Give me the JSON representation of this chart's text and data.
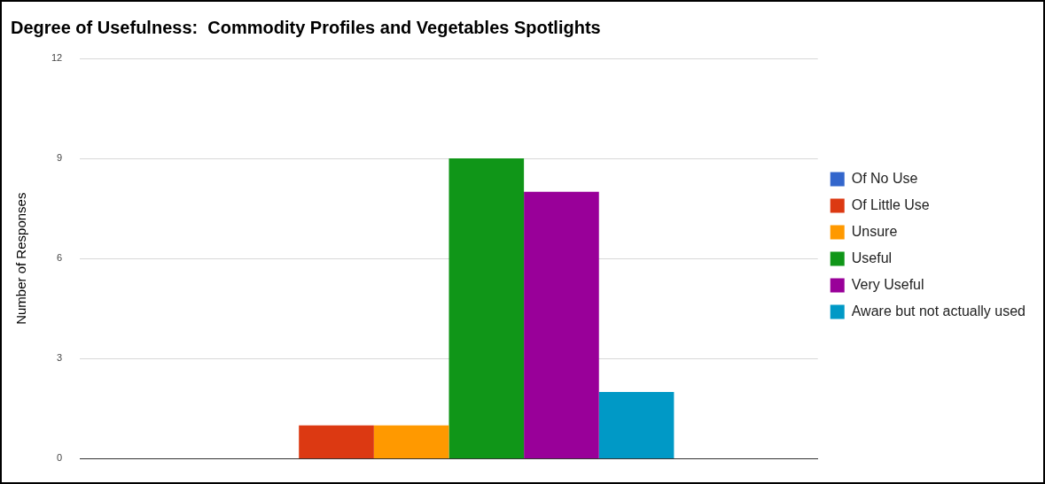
{
  "chart_data": {
    "type": "bar",
    "title": "Degree of Usefulness:  Commodity Profiles and Vegetables Spotlights",
    "ylabel": "Number of Responses",
    "categories": [
      null
    ],
    "series": [
      {
        "name": "Of No Use",
        "color": "#3366cc",
        "values": [
          0
        ]
      },
      {
        "name": "Of Little Use",
        "color": "#dc3912",
        "values": [
          1
        ]
      },
      {
        "name": "Unsure",
        "color": "#ff9900",
        "values": [
          1
        ]
      },
      {
        "name": "Useful",
        "color": "#109618",
        "values": [
          9
        ]
      },
      {
        "name": "Very Useful",
        "color": "#990099",
        "values": [
          8
        ]
      },
      {
        "name": "Aware but not actually used",
        "color": "#0099c6",
        "values": [
          2
        ]
      }
    ],
    "ylim": [
      0,
      12
    ],
    "yticks": [
      0,
      3,
      6,
      9,
      12
    ],
    "grid": "y",
    "legend": "right",
    "tick_labels": "y"
  }
}
